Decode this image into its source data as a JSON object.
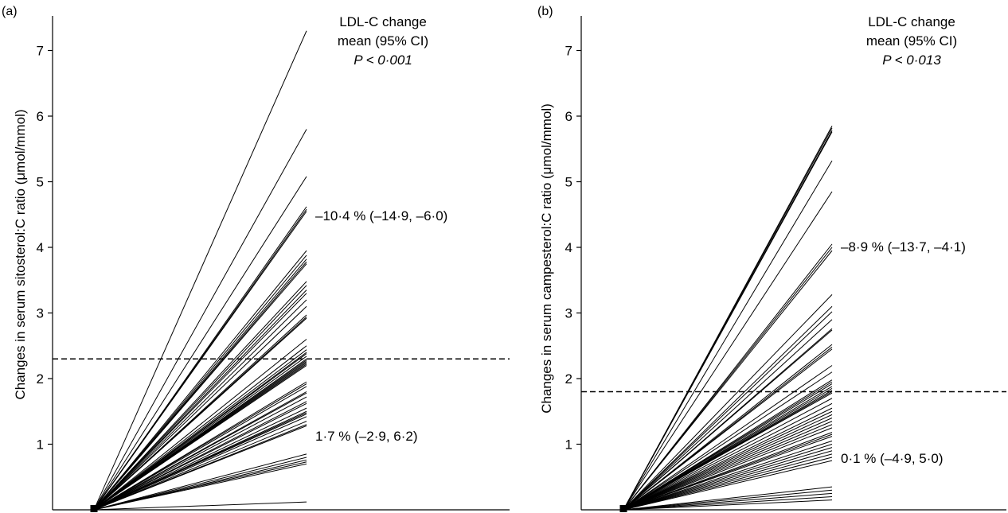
{
  "chart_data": [
    {
      "type": "line",
      "panel": "(a)",
      "ylabel": "Changes in serum sitosterol:C ratio (μmol/mmol)",
      "xlabel": "",
      "ylim": [
        0,
        7.5
      ],
      "yticks": [
        "1",
        "2",
        "3",
        "4",
        "5",
        "6",
        "7"
      ],
      "origin": 0,
      "dashed_line_y": 2.3,
      "annotation_header": [
        "LDL-C change",
        "mean (95% CI)",
        "P < 0·001"
      ],
      "annotation_upper": "–10·4 % (–14·9, –6·0)",
      "annotation_lower": "1·7 % (–2·9, 6·2)",
      "endpoints": [
        7.3,
        5.8,
        5.08,
        4.62,
        4.58,
        4.55,
        3.95,
        3.88,
        3.82,
        3.78,
        3.75,
        3.48,
        3.42,
        3.35,
        3.3,
        3.2,
        3.1,
        2.97,
        2.94,
        2.92,
        2.6,
        2.5,
        2.44,
        2.4,
        2.38,
        2.34,
        2.3,
        2.28,
        2.26,
        2.24,
        2.22,
        2.2,
        1.95,
        1.92,
        1.88,
        1.8,
        1.78,
        1.72,
        1.65,
        1.62,
        1.55,
        1.5,
        1.48,
        1.46,
        1.42,
        1.35,
        1.3,
        1.28,
        0.85,
        0.8,
        0.76,
        0.73,
        0.7,
        0.12
      ]
    },
    {
      "type": "line",
      "panel": "(b)",
      "ylabel": "Changes in serum campesterol:C ratio (μmol/mmol)",
      "xlabel": "",
      "ylim": [
        0,
        7.5
      ],
      "yticks": [
        "1",
        "2",
        "3",
        "4",
        "5",
        "6",
        "7"
      ],
      "origin": 0,
      "dashed_line_y": 1.8,
      "annotation_header": [
        "LDL-C change",
        "mean (95% CI)",
        "P < 0·013"
      ],
      "annotation_upper": "–8·9 % (–13·7, –4·1)",
      "annotation_lower": "0·1 % (–4·9, 5·0)",
      "endpoints": [
        5.85,
        5.82,
        5.78,
        5.76,
        5.32,
        4.85,
        4.05,
        4.0,
        3.95,
        3.28,
        3.1,
        3.02,
        2.9,
        2.76,
        2.74,
        2.52,
        2.48,
        2.45,
        2.2,
        2.1,
        1.98,
        1.95,
        1.92,
        1.88,
        1.85,
        1.82,
        1.8,
        1.78,
        1.7,
        1.62,
        1.55,
        1.5,
        1.45,
        1.4,
        1.35,
        1.3,
        1.25,
        1.18,
        1.15,
        1.12,
        1.05,
        1.0,
        0.95,
        0.9,
        0.85,
        0.8,
        0.75,
        0.35,
        0.3,
        0.25,
        0.2,
        0.15
      ]
    }
  ]
}
